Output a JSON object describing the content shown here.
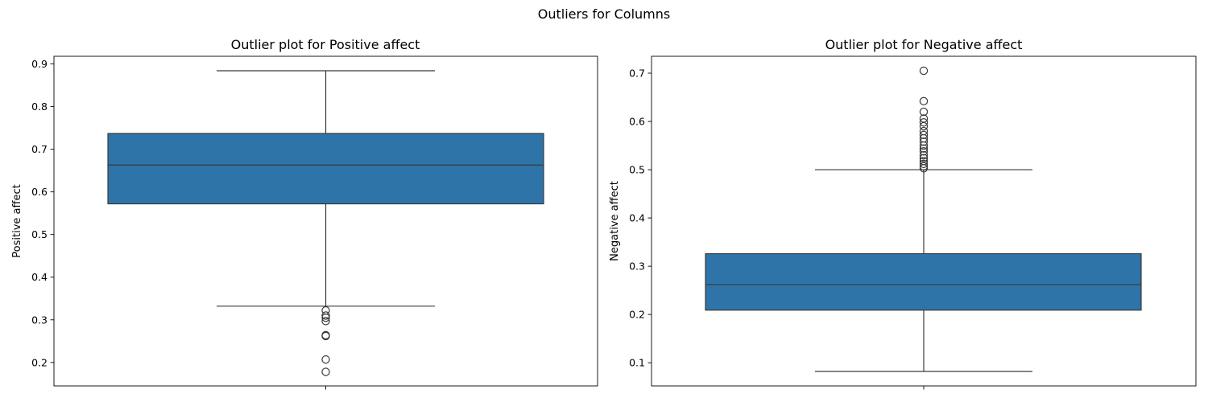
{
  "figure": {
    "suptitle": "Outliers for Columns"
  },
  "colors": {
    "box_fill": "#2e74a8",
    "line": "#3a3a3a"
  },
  "chart_data": [
    {
      "type": "box",
      "title": "Outlier plot for Positive affect",
      "xlabel": "",
      "ylabel": "Positive affect",
      "ylim": [
        0.145,
        0.918
      ],
      "yticks": [
        0.2,
        0.3,
        0.4,
        0.5,
        0.6,
        0.7,
        0.8,
        0.9
      ],
      "q1": 0.572,
      "median": 0.663,
      "q3": 0.737,
      "whisker_low": 0.332,
      "whisker_high": 0.884,
      "outliers": [
        0.322,
        0.31,
        0.305,
        0.297,
        0.264,
        0.262,
        0.207,
        0.178
      ],
      "grid": false
    },
    {
      "type": "box",
      "title": "Outlier plot for Negative affect",
      "xlabel": "",
      "ylabel": "Negative affect",
      "ylim": [
        0.052,
        0.735
      ],
      "yticks": [
        0.1,
        0.2,
        0.3,
        0.4,
        0.5,
        0.6,
        0.7
      ],
      "q1": 0.209,
      "median": 0.262,
      "q3": 0.326,
      "whisker_low": 0.082,
      "whisker_high": 0.5,
      "outliers": [
        0.705,
        0.642,
        0.62,
        0.606,
        0.598,
        0.59,
        0.58,
        0.572,
        0.565,
        0.558,
        0.55,
        0.544,
        0.538,
        0.53,
        0.524,
        0.518,
        0.512,
        0.507,
        0.503
      ],
      "grid": false
    }
  ]
}
